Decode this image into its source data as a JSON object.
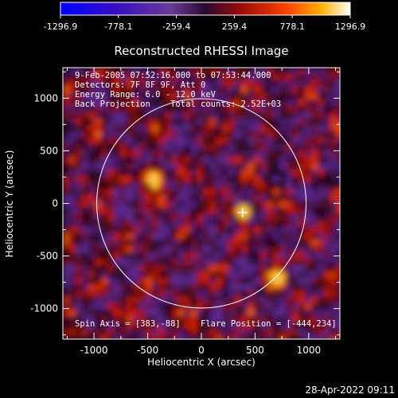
{
  "chart_data": {
    "type": "heatmap",
    "title": "Reconstructed RHESSI Image",
    "xlabel": "Heliocentric X (arcsec)",
    "ylabel": "Heliocentric Y (arcsec)",
    "xlim": [
      -1290,
      1290
    ],
    "ylim": [
      -1290,
      1290
    ],
    "x_ticks": [
      -1000,
      -500,
      0,
      500,
      1000
    ],
    "y_ticks": [
      -1000,
      -500,
      0,
      500,
      1000
    ],
    "x_tick_labels": [
      "-1000",
      "-500",
      "0",
      "500",
      "1000"
    ],
    "y_tick_labels": [
      "-1000",
      "-500",
      "0",
      "500",
      "1000"
    ],
    "colorbar": {
      "range": [
        -1296.9,
        1296.9
      ],
      "ticks": [
        -1296.9,
        -778.1,
        -259.4,
        259.4,
        778.1,
        1296.9
      ],
      "tick_labels": [
        "-1296.9",
        "-778.1",
        "-259.4",
        "259.4",
        "778.1",
        "1296.9"
      ]
    },
    "info_lines": [
      "9-Feb-2005 07:52:16.000 to 07:53:44.000",
      "Detectors: 7F 8F 9F, Att 0",
      "Energy Range: 6.0 - 12.0 keV",
      "Back Projection    Total counts: 2.52E+03"
    ],
    "spin_axis_label": "Spin Axis = [383,-88]",
    "flare_position_label": "Flare Position = [-444,234]",
    "spin_axis": [
      383,
      -88
    ],
    "flare_position": [
      -444,
      234
    ],
    "solar_limb_radius_arcsec": 975,
    "sources": [
      {
        "x": -444,
        "y": 234,
        "amplitude": 1296.9,
        "width": 55
      },
      {
        "x": 710,
        "y": -720,
        "amplitude": 900,
        "width": 55
      },
      {
        "x": 390,
        "y": -80,
        "amplitude": 750,
        "width": 45
      }
    ],
    "timestamp": "28-Apr-2022 09:11",
    "colors": {
      "background": "#000000",
      "limb": "#ffffff",
      "colormap": [
        "#0000ff",
        "#3300cc",
        "#5b2a9e",
        "#6a3a9a",
        "#3a1040",
        "#7a0a0a",
        "#cc1a00",
        "#ff6a00",
        "#ffc000",
        "#ffffff"
      ]
    }
  }
}
